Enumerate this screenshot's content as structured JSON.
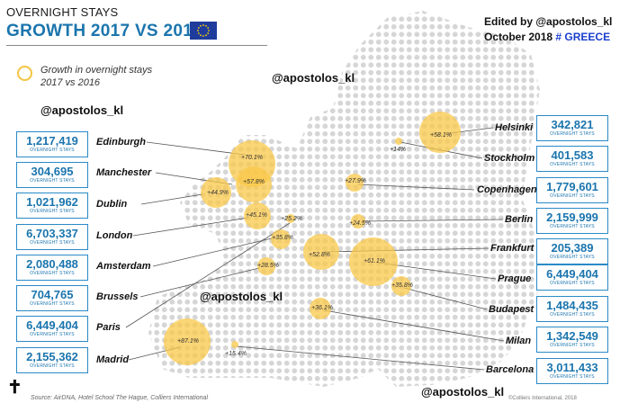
{
  "header": {
    "title_top": "OVERNIGHT STAYS",
    "title_main": "GROWTH 2017 VS 2016"
  },
  "credit": {
    "edited_by": "Edited by  @apostolos_kl",
    "date": "October 2018",
    "hashtag": "# GREECE"
  },
  "legend": {
    "line1": "Growth in overnight stays",
    "line2": "2017 vs 2016"
  },
  "handles": {
    "top": "@apostolos_kl",
    "left": "@apostolos_kl",
    "middle": "@apostolos_kl",
    "bottom": "@apostolos_kl"
  },
  "overnight_label": "OVERNIGHT STAYS",
  "left_cities": [
    {
      "name": "Edinburgh",
      "stays": "1,217,419",
      "growth": "+70.1%"
    },
    {
      "name": "Manchester",
      "stays": "304,695",
      "growth": "+57.8%"
    },
    {
      "name": "Dublin",
      "stays": "1,021,962",
      "growth": "+44.9%"
    },
    {
      "name": "London",
      "stays": "6,703,337",
      "growth": "+45.1%"
    },
    {
      "name": "Amsterdam",
      "stays": "2,080,488",
      "growth": "+35.8%"
    },
    {
      "name": "Brussels",
      "stays": "704,765",
      "growth": "+28.5%"
    },
    {
      "name": "Paris",
      "stays": "6,449,404",
      "growth": "+25.2%"
    },
    {
      "name": "Madrid",
      "stays": "2,155,362",
      "growth": "+87.1%"
    }
  ],
  "right_cities": [
    {
      "name": "Helsinki",
      "stays": "342,821",
      "growth": "+58.1%"
    },
    {
      "name": "Stockholm",
      "stays": "401,583",
      "growth": "+14%"
    },
    {
      "name": "Copenhagen",
      "stays": "1,779,601",
      "growth": "+27.9%"
    },
    {
      "name": "Berlin",
      "stays": "2,159,999",
      "growth": "+24.5%"
    },
    {
      "name": "Frankfurt",
      "stays": "205,389",
      "growth": "+52.8%"
    },
    {
      "name": "Prague",
      "stays": "6,449,404",
      "growth": "+61.1%"
    },
    {
      "name": "Budapest",
      "stays": "1,484,435",
      "growth": "+35.8%"
    },
    {
      "name": "Milan",
      "stays": "1,342,549",
      "growth": "+36.1%"
    },
    {
      "name": "Barcelona",
      "stays": "3,011,433",
      "growth": "+15.4%"
    }
  ],
  "footer": {
    "source": "Source: AirDNA, Hotel School The Hague, Colliers International",
    "copyright": "©Colliers International, 2018",
    "cross": "✝"
  },
  "colors": {
    "accent_blue": "#1b75ae",
    "bubble": "#f9c84a",
    "map_dots": "#d6d6d6"
  }
}
